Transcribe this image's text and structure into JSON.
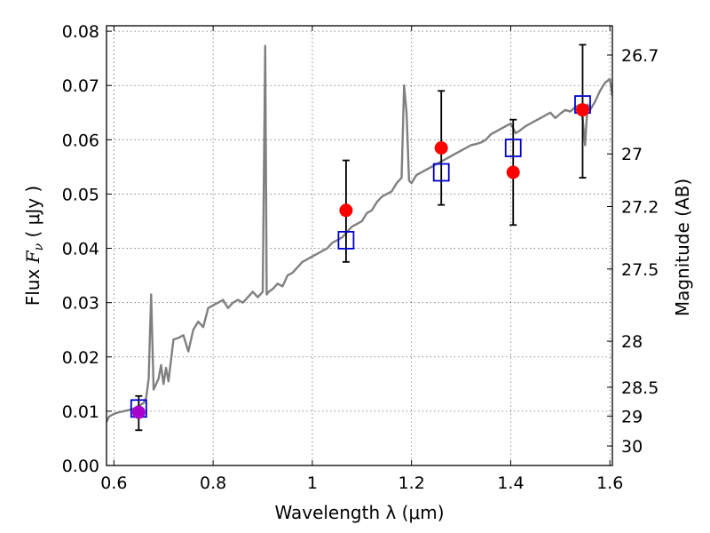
{
  "chart_data": {
    "type": "scatter",
    "xlabel": "Wavelength  λ (μm)",
    "ylabel": "Flux  F_ν  ( μJy )",
    "ylabel_parts": {
      "prefix": "Flux  ",
      "symbol": "F",
      "subscript": "ν",
      "suffix": "  ( μJy )"
    },
    "y2label": "Magnitude (AB)",
    "xlim": [
      0.585,
      1.605
    ],
    "ylim": [
      0.0,
      0.081
    ],
    "grid": true,
    "x_ticks": [
      0.6,
      0.8,
      1.0,
      1.2,
      1.4,
      1.6
    ],
    "x_tick_labels": [
      "0.6",
      "0.8",
      "1",
      "1.2",
      "1.4",
      "1.6"
    ],
    "y_ticks": [
      0.0,
      0.01,
      0.02,
      0.03,
      0.04,
      0.05,
      0.06,
      0.07,
      0.08
    ],
    "y_tick_labels": [
      "0.00",
      "0.01",
      "0.02",
      "0.03",
      "0.04",
      "0.05",
      "0.06",
      "0.07",
      "0.08"
    ],
    "y2_ticks": [
      {
        "label": "26.7",
        "flux": 0.0756
      },
      {
        "label": "27",
        "flux": 0.0574
      },
      {
        "label": "27.2",
        "flux": 0.0477
      },
      {
        "label": "27.5",
        "flux": 0.0362
      },
      {
        "label": "28",
        "flux": 0.0229
      },
      {
        "label": "28.5",
        "flux": 0.0144
      },
      {
        "label": "29",
        "flux": 0.0091
      },
      {
        "label": "30",
        "flux": 0.0036
      }
    ],
    "series": [
      {
        "kind": "line",
        "color": "#808080",
        "x": [
          0.585,
          0.59,
          0.6,
          0.61,
          0.62,
          0.63,
          0.64,
          0.65,
          0.66,
          0.665,
          0.67,
          0.675,
          0.68,
          0.69,
          0.695,
          0.7,
          0.705,
          0.71,
          0.72,
          0.73,
          0.74,
          0.75,
          0.76,
          0.77,
          0.78,
          0.79,
          0.8,
          0.81,
          0.82,
          0.83,
          0.84,
          0.85,
          0.86,
          0.87,
          0.88,
          0.89,
          0.9,
          0.905,
          0.908,
          0.912,
          0.92,
          0.93,
          0.94,
          0.95,
          0.96,
          0.97,
          0.98,
          0.99,
          1.0,
          1.01,
          1.02,
          1.03,
          1.04,
          1.05,
          1.06,
          1.07,
          1.08,
          1.09,
          1.1,
          1.11,
          1.12,
          1.13,
          1.14,
          1.15,
          1.16,
          1.17,
          1.18,
          1.185,
          1.19,
          1.195,
          1.2,
          1.21,
          1.22,
          1.23,
          1.24,
          1.25,
          1.26,
          1.27,
          1.28,
          1.29,
          1.3,
          1.31,
          1.32,
          1.33,
          1.34,
          1.35,
          1.36,
          1.37,
          1.38,
          1.39,
          1.4,
          1.41,
          1.42,
          1.43,
          1.44,
          1.45,
          1.46,
          1.47,
          1.48,
          1.49,
          1.5,
          1.51,
          1.52,
          1.53,
          1.54,
          1.545,
          1.55,
          1.555,
          1.56,
          1.57,
          1.58,
          1.59,
          1.6,
          1.605
        ],
        "y": [
          0.008,
          0.009,
          0.0095,
          0.0098,
          0.01,
          0.0102,
          0.0105,
          0.011,
          0.0115,
          0.0125,
          0.016,
          0.0315,
          0.014,
          0.016,
          0.0185,
          0.015,
          0.018,
          0.0155,
          0.0232,
          0.0235,
          0.024,
          0.021,
          0.025,
          0.0265,
          0.0255,
          0.029,
          0.0295,
          0.03,
          0.0305,
          0.029,
          0.03,
          0.0305,
          0.03,
          0.031,
          0.032,
          0.031,
          0.032,
          0.0773,
          0.0315,
          0.032,
          0.0325,
          0.0335,
          0.033,
          0.035,
          0.0355,
          0.0365,
          0.0375,
          0.038,
          0.0385,
          0.039,
          0.0395,
          0.04,
          0.041,
          0.0415,
          0.042,
          0.043,
          0.044,
          0.0445,
          0.045,
          0.0465,
          0.047,
          0.0485,
          0.0495,
          0.05,
          0.0505,
          0.052,
          0.053,
          0.07,
          0.065,
          0.0525,
          0.052,
          0.0535,
          0.054,
          0.0545,
          0.055,
          0.0555,
          0.056,
          0.0565,
          0.057,
          0.0575,
          0.058,
          0.0585,
          0.059,
          0.0592,
          0.0595,
          0.06,
          0.061,
          0.0615,
          0.062,
          0.0625,
          0.063,
          0.0612,
          0.0618,
          0.0625,
          0.063,
          0.0635,
          0.064,
          0.0645,
          0.065,
          0.064,
          0.0648,
          0.0655,
          0.0652,
          0.066,
          0.0665,
          0.064,
          0.059,
          0.0665,
          0.0655,
          0.067,
          0.069,
          0.0705,
          0.0712,
          0.068
        ]
      },
      {
        "kind": "errorbar",
        "color": "#000000",
        "points": [
          {
            "x": 0.65,
            "low": 0.0065,
            "high": 0.0128
          },
          {
            "x": 1.068,
            "low": 0.0375,
            "high": 0.0562
          },
          {
            "x": 1.26,
            "low": 0.048,
            "high": 0.069
          },
          {
            "x": 1.405,
            "low": 0.0443,
            "high": 0.0637
          },
          {
            "x": 1.545,
            "low": 0.053,
            "high": 0.0775
          }
        ]
      },
      {
        "kind": "scatter",
        "marker": "open-square",
        "color": "#0000cc",
        "x": [
          0.65,
          1.068,
          1.26,
          1.405,
          1.545
        ],
        "y": [
          0.0105,
          0.0415,
          0.054,
          0.0585,
          0.0665
        ]
      },
      {
        "kind": "scatter",
        "marker": "filled-circle",
        "color": "#ff0000",
        "x": [
          1.068,
          1.26,
          1.405,
          1.545
        ],
        "y": [
          0.047,
          0.0585,
          0.054,
          0.0655
        ]
      },
      {
        "kind": "scatter",
        "marker": "filled-circle",
        "color": "#aa00cc",
        "x": [
          0.65
        ],
        "y": [
          0.0098
        ]
      }
    ]
  }
}
